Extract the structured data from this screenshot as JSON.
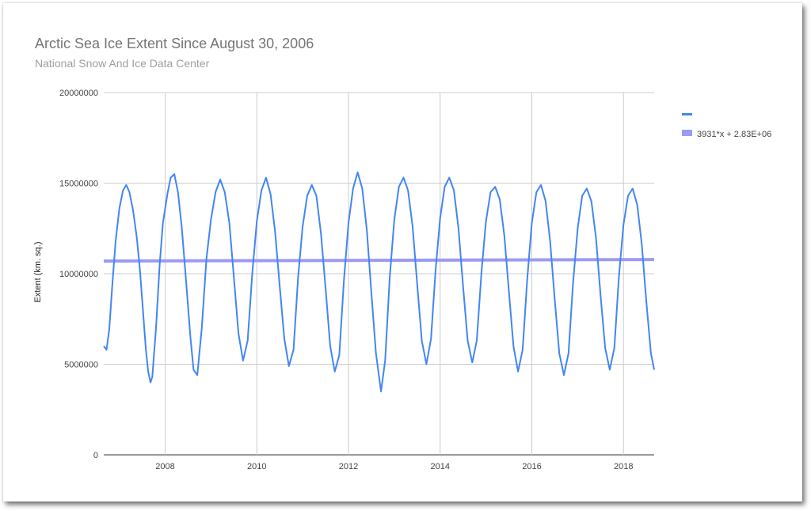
{
  "chart_data": {
    "type": "line",
    "title": "Arctic Sea Ice Extent Since August 30, 2006",
    "subtitle": "National Snow And Ice Data Center",
    "xlabel": "",
    "ylabel": "Extent (km. sq.)",
    "xlim": [
      2006.66,
      2018.67
    ],
    "ylim": [
      0,
      20000000
    ],
    "x_ticks": [
      2008,
      2010,
      2012,
      2014,
      2016,
      2018
    ],
    "x_tick_labels": [
      "2008",
      "2010",
      "2012",
      "2014",
      "2016",
      "2018"
    ],
    "y_ticks": [
      0,
      5000000,
      10000000,
      15000000,
      20000000
    ],
    "y_tick_labels": [
      "0",
      "5000000",
      "10000000",
      "15000000",
      "20000000"
    ],
    "grid": true,
    "legend_position": "right",
    "series": [
      {
        "name": "",
        "color": "#4285f4",
        "x": [
          2006.66,
          2006.72,
          2006.78,
          2006.85,
          2006.92,
          2007.0,
          2007.08,
          2007.15,
          2007.22,
          2007.3,
          2007.38,
          2007.45,
          2007.52,
          2007.58,
          2007.63,
          2007.68,
          2007.72,
          2007.8,
          2007.88,
          2007.95,
          2008.05,
          2008.12,
          2008.2,
          2008.28,
          2008.36,
          2008.45,
          2008.55,
          2008.62,
          2008.7,
          2008.8,
          2008.9,
          2009.0,
          2009.1,
          2009.2,
          2009.3,
          2009.4,
          2009.5,
          2009.6,
          2009.7,
          2009.8,
          2009.9,
          2010.0,
          2010.1,
          2010.2,
          2010.3,
          2010.4,
          2010.5,
          2010.6,
          2010.7,
          2010.8,
          2010.9,
          2011.0,
          2011.1,
          2011.2,
          2011.3,
          2011.4,
          2011.5,
          2011.6,
          2011.7,
          2011.8,
          2011.9,
          2012.0,
          2012.1,
          2012.2,
          2012.3,
          2012.4,
          2012.5,
          2012.6,
          2012.71,
          2012.8,
          2012.9,
          2013.0,
          2013.1,
          2013.2,
          2013.3,
          2013.4,
          2013.5,
          2013.6,
          2013.7,
          2013.8,
          2013.9,
          2014.0,
          2014.1,
          2014.2,
          2014.3,
          2014.4,
          2014.5,
          2014.6,
          2014.7,
          2014.8,
          2014.9,
          2015.0,
          2015.1,
          2015.2,
          2015.3,
          2015.4,
          2015.5,
          2015.6,
          2015.7,
          2015.8,
          2015.9,
          2016.0,
          2016.1,
          2016.2,
          2016.3,
          2016.4,
          2016.5,
          2016.6,
          2016.7,
          2016.8,
          2016.9,
          2017.0,
          2017.1,
          2017.2,
          2017.3,
          2017.4,
          2017.5,
          2017.6,
          2017.7,
          2017.8,
          2017.9,
          2018.0,
          2018.1,
          2018.2,
          2018.3,
          2018.4,
          2018.5,
          2018.6,
          2018.67
        ],
        "y": [
          6000000,
          5800000,
          6900000,
          9500000,
          11800000,
          13600000,
          14600000,
          14900000,
          14500000,
          13500000,
          12000000,
          10200000,
          7800000,
          5800000,
          4600000,
          4000000,
          4300000,
          7000000,
          10500000,
          12800000,
          14400000,
          15300000,
          15500000,
          14500000,
          12600000,
          9800000,
          6500000,
          4700000,
          4400000,
          7000000,
          10800000,
          13000000,
          14500000,
          15200000,
          14500000,
          12800000,
          9800000,
          6700000,
          5200000,
          6300000,
          10000000,
          12900000,
          14600000,
          15300000,
          14400000,
          12300000,
          9300000,
          6400000,
          4900000,
          5800000,
          9800000,
          12600000,
          14300000,
          14900000,
          14300000,
          12200000,
          9200000,
          6000000,
          4600000,
          5500000,
          9600000,
          12800000,
          14700000,
          15600000,
          14700000,
          12400000,
          8900000,
          5600000,
          3500000,
          5200000,
          9800000,
          13000000,
          14800000,
          15300000,
          14600000,
          12600000,
          9400000,
          6300000,
          5000000,
          6400000,
          10200000,
          13100000,
          14800000,
          15300000,
          14600000,
          12500000,
          9300000,
          6300000,
          5100000,
          6300000,
          10000000,
          12900000,
          14500000,
          14800000,
          14100000,
          12100000,
          9000000,
          6000000,
          4600000,
          5800000,
          9700000,
          12800000,
          14500000,
          14900000,
          14000000,
          11800000,
          8600000,
          5600000,
          4400000,
          5600000,
          9500000,
          12500000,
          14300000,
          14700000,
          14000000,
          12000000,
          8800000,
          5900000,
          4700000,
          5900000,
          9800000,
          12700000,
          14300000,
          14700000,
          13800000,
          11600000,
          8400000,
          5600000,
          4700000
        ]
      },
      {
        "name": "3931*x + 2.83E+06",
        "color": "#9b9bf5",
        "x": [
          2006.66,
          2018.67
        ],
        "y": [
          10700000,
          10780000
        ]
      }
    ]
  }
}
